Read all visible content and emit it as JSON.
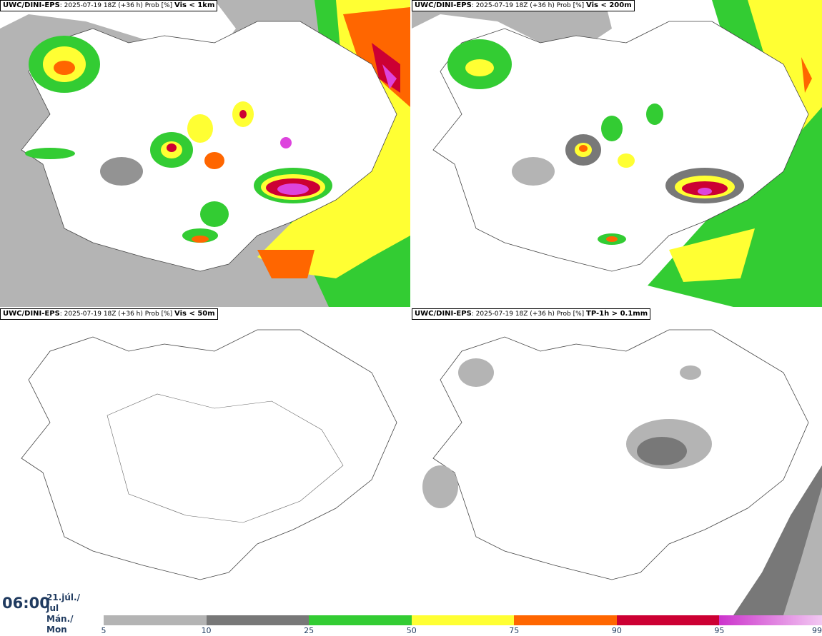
{
  "panels": [
    {
      "model": "UWC/DINI-EPS",
      "run": ": 2025-07-19 18Z (+36 h) Prob [%]",
      "variable": "Vis < 1km"
    },
    {
      "model": "UWC/DINI-EPS",
      "run": ": 2025-07-19 18Z (+36 h) Prob [%]",
      "variable": "Vis < 200m"
    },
    {
      "model": "UWC/DINI-EPS",
      "run": ": 2025-07-19 18Z (+36 h) Prob [%]",
      "variable": "Vis < 50m"
    },
    {
      "model": "UWC/DINI-EPS",
      "run": ": 2025-07-19 18Z (+36 h) Prob [%]",
      "variable": "TP-1h > 0.1mm"
    }
  ],
  "valid_time": {
    "time": "06:00",
    "date": "21.júl./ Jul",
    "weekday": "Mán./ Mon"
  },
  "legend": {
    "ticks": [
      "5",
      "10",
      "25",
      "50",
      "75",
      "90",
      "95",
      "99"
    ],
    "colors": [
      "#b4b4b4",
      "#787878",
      "#33cc33",
      "#ffff33",
      "#ff6600",
      "#cc0033",
      "#dd44dd"
    ]
  }
}
